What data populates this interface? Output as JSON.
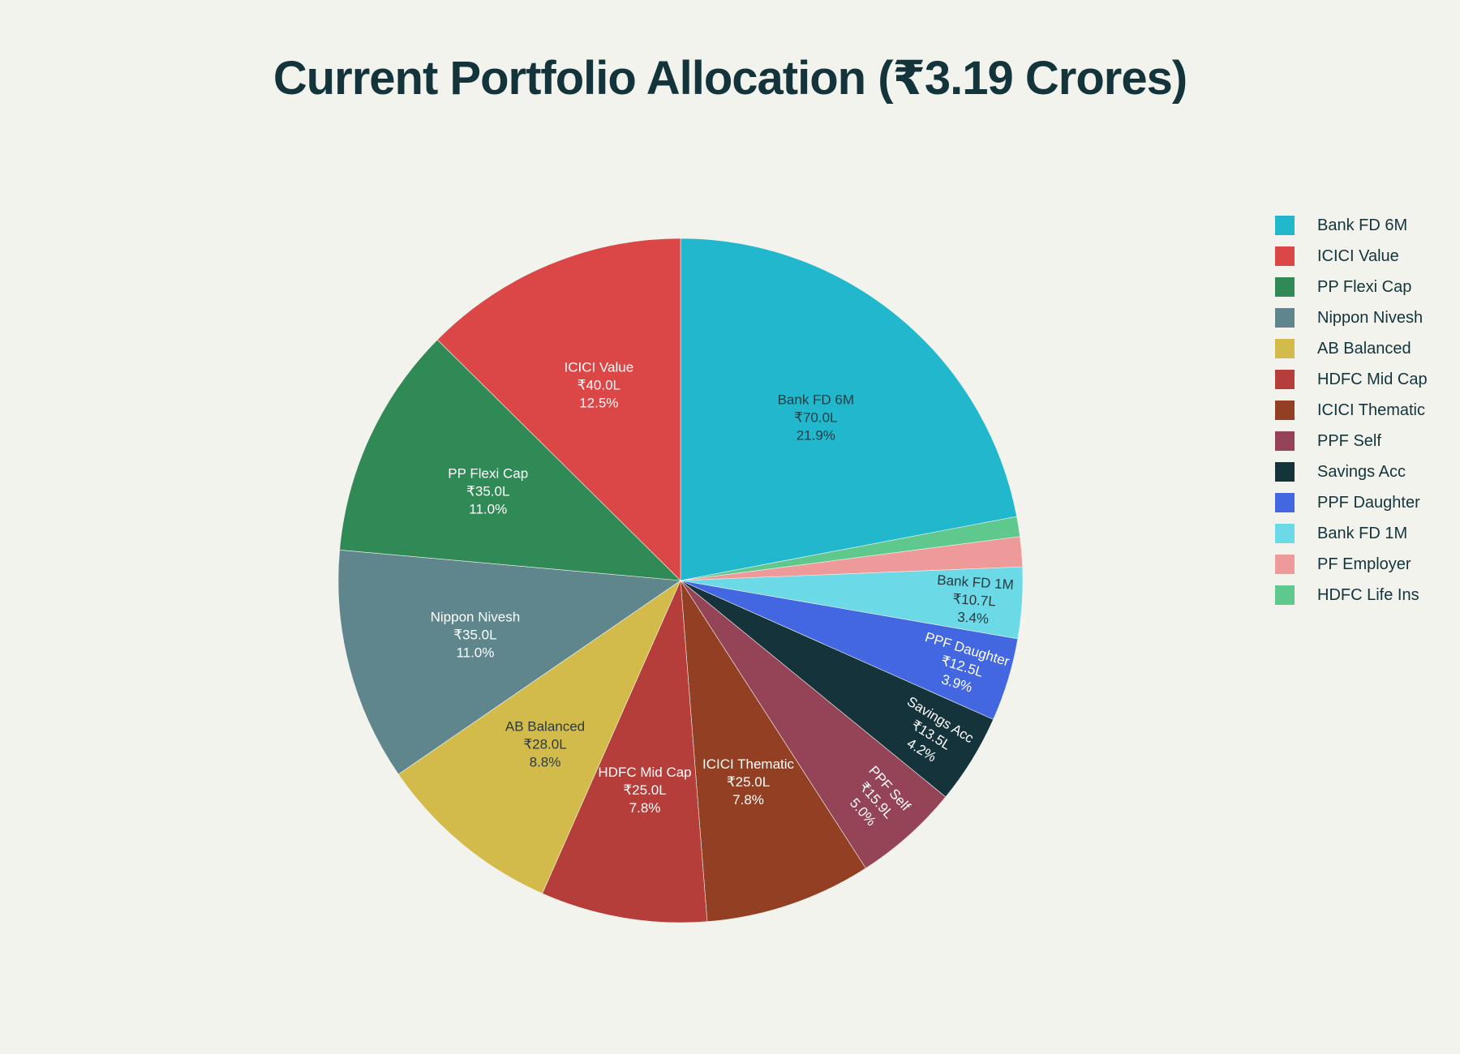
{
  "chart_data": {
    "type": "pie",
    "title": "Current Portfolio Allocation (₹3.19 Crores)",
    "legend_position": "right",
    "direction": "clockwise",
    "slices": [
      {
        "label": "Bank FD 6M",
        "value": 70.0,
        "value_text": "₹70.0L",
        "percent_text": "21.9%",
        "color": "#21b8cd",
        "label_color": "#2b3a40"
      },
      {
        "label": "HDFC Life Ins",
        "value": 3.0,
        "value_text": "",
        "percent_text": "",
        "color": "#5ec88d",
        "label_color": "#2b3a40"
      },
      {
        "label": "PF Employer",
        "value": 4.5,
        "value_text": "",
        "percent_text": "",
        "color": "#ee9a9a",
        "label_color": "#2b3a40"
      },
      {
        "label": "Bank FD 1M",
        "value": 10.7,
        "value_text": "₹10.7L",
        "percent_text": "3.4%",
        "color": "#6bd9e6",
        "label_color": "#2b3a40"
      },
      {
        "label": "PPF Daughter",
        "value": 12.5,
        "value_text": "₹12.5L",
        "percent_text": "3.9%",
        "color": "#4267e0",
        "label_color": "#ffffff"
      },
      {
        "label": "Savings Acc",
        "value": 13.5,
        "value_text": "₹13.5L",
        "percent_text": "4.2%",
        "color": "#15333b",
        "label_color": "#ffffff"
      },
      {
        "label": "PPF Self",
        "value": 15.9,
        "value_text": "₹15.9L",
        "percent_text": "5.0%",
        "color": "#944456",
        "label_color": "#ffffff"
      },
      {
        "label": "ICICI Thematic",
        "value": 25.0,
        "value_text": "₹25.0L",
        "percent_text": "7.8%",
        "color": "#923f23",
        "label_color": "#ffffff"
      },
      {
        "label": "HDFC Mid Cap",
        "value": 25.0,
        "value_text": "₹25.0L",
        "percent_text": "7.8%",
        "color": "#b53d3a",
        "label_color": "#ffffff"
      },
      {
        "label": "AB Balanced",
        "value": 28.0,
        "value_text": "₹28.0L",
        "percent_text": "8.8%",
        "color": "#d3bb4b",
        "label_color": "#2b3a40"
      },
      {
        "label": "Nippon Nivesh",
        "value": 35.0,
        "value_text": "₹35.0L",
        "percent_text": "11.0%",
        "color": "#5e868c",
        "label_color": "#ffffff"
      },
      {
        "label": "PP Flexi Cap",
        "value": 35.0,
        "value_text": "₹35.0L",
        "percent_text": "11.0%",
        "color": "#2f8a56",
        "label_color": "#ffffff"
      },
      {
        "label": "ICICI Value",
        "value": 40.0,
        "value_text": "₹40.0L",
        "percent_text": "12.5%",
        "color": "#db4646",
        "label_color": "#ffffff"
      }
    ],
    "legend": [
      {
        "label": "Bank FD 6M",
        "color": "#21b8cd"
      },
      {
        "label": "ICICI Value",
        "color": "#db4646"
      },
      {
        "label": "PP Flexi Cap",
        "color": "#2f8a56"
      },
      {
        "label": "Nippon Nivesh",
        "color": "#5e868c"
      },
      {
        "label": "AB Balanced",
        "color": "#d3bb4b"
      },
      {
        "label": "HDFC Mid Cap",
        "color": "#b53d3a"
      },
      {
        "label": "ICICI Thematic",
        "color": "#923f23"
      },
      {
        "label": "PPF Self",
        "color": "#944456"
      },
      {
        "label": "Savings Acc",
        "color": "#15333b"
      },
      {
        "label": "PPF Daughter",
        "color": "#4267e0"
      },
      {
        "label": "Bank FD 1M",
        "color": "#6bd9e6"
      },
      {
        "label": "PF Employer",
        "color": "#ee9a9a"
      },
      {
        "label": "HDFC Life Ins",
        "color": "#5ec88d"
      }
    ]
  }
}
